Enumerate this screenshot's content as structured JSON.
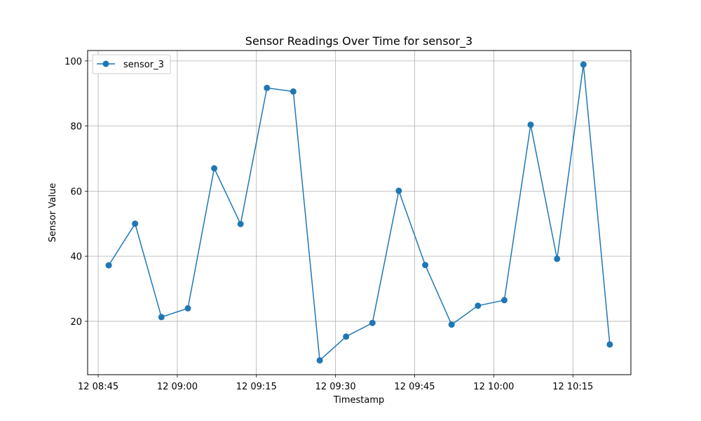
{
  "chart_data": {
    "type": "line",
    "title": "Sensor Readings Over Time for sensor_3",
    "xlabel": "Timestamp",
    "ylabel": "Sensor Value",
    "grid": true,
    "legend_position": "upper-left",
    "x_ticks": [
      "12 08:45",
      "12 09:00",
      "12 09:15",
      "12 09:30",
      "12 09:45",
      "12 10:00",
      "12 10:15"
    ],
    "y_ticks": [
      "20",
      "40",
      "60",
      "80",
      "100"
    ],
    "ylim": [
      3.6,
      103.2
    ],
    "xlim": [
      "08:43",
      "10:26"
    ],
    "colors": {
      "series": "#1f77b4",
      "grid": "#b0b0b0"
    },
    "series": [
      {
        "name": "sensor_3",
        "x": [
          "08:47",
          "08:52",
          "08:57",
          "09:02",
          "09:07",
          "09:12",
          "09:17",
          "09:22",
          "09:27",
          "09:32",
          "09:37",
          "09:42",
          "09:47",
          "09:52",
          "09:57",
          "10:02",
          "10:07",
          "10:12",
          "10:17",
          "10:22"
        ],
        "values": [
          37.2,
          50.0,
          21.3,
          24.0,
          67.0,
          49.9,
          91.7,
          90.6,
          8.0,
          15.3,
          19.5,
          60.1,
          37.3,
          19.0,
          24.8,
          26.5,
          80.4,
          39.2,
          98.9,
          12.9
        ]
      }
    ]
  }
}
